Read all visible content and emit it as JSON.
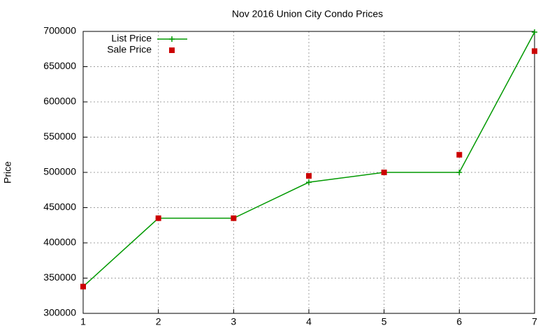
{
  "chart_data": {
    "type": "line",
    "title": "Nov 2016 Union City Condo Prices",
    "y_label": "Price",
    "x": [
      1,
      2,
      3,
      4,
      5,
      6,
      7
    ],
    "series": [
      {
        "name": "List Price",
        "color": "#009900",
        "mode": "linespoints",
        "values": [
          338000,
          435000,
          435000,
          486000,
          500000,
          500000,
          699000
        ]
      },
      {
        "name": "Sale Price",
        "color": "#cc0000",
        "mode": "points",
        "values": [
          338000,
          435000,
          435000,
          495000,
          500000,
          525000,
          672000
        ]
      }
    ],
    "xlim": [
      1,
      7
    ],
    "xticks": [
      1,
      2,
      3,
      4,
      5,
      6,
      7
    ],
    "ylim": [
      300000,
      700000
    ],
    "yticks": [
      300000,
      350000,
      400000,
      450000,
      500000,
      550000,
      600000,
      650000,
      700000
    ],
    "grid": true,
    "legend": "top-left"
  }
}
